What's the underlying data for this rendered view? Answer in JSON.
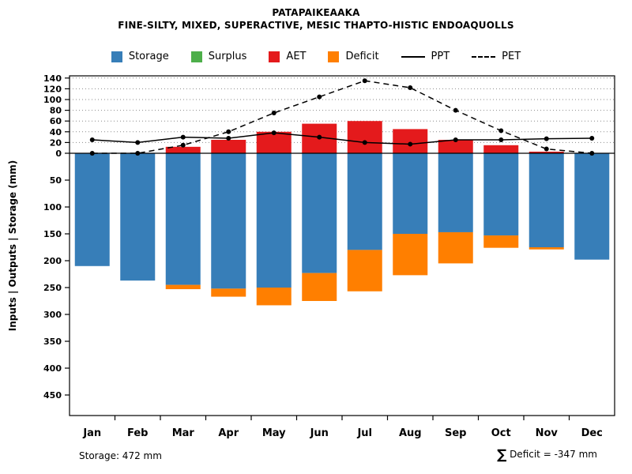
{
  "title": "PATAPAIKEAAKA",
  "subtitle": "FINE-SILTY, MIXED, SUPERACTIVE, MESIC THAPTO-HISTIC ENDOAQUOLLS",
  "footer": {
    "left": "Storage: 472 mm",
    "right_sigma": "∑",
    "right_text": " Deficit = -347 mm"
  },
  "legend": {
    "position": "top",
    "items": [
      {
        "label": "Storage",
        "swatch": "square",
        "color": "#377EB8"
      },
      {
        "label": "Surplus",
        "swatch": "square",
        "color": "#4DAF4A"
      },
      {
        "label": "AET",
        "swatch": "square",
        "color": "#E41A1C"
      },
      {
        "label": "Deficit",
        "swatch": "square",
        "color": "#FF7F00"
      },
      {
        "label": "PPT",
        "swatch": "line-solid",
        "color": "#000000"
      },
      {
        "label": "PET",
        "swatch": "line-dashed",
        "color": "#000000"
      }
    ]
  },
  "chart_data": {
    "type": "bar",
    "title": "PATAPAIKEAAKA",
    "subtitle": "FINE-SILTY, MIXED, SUPERACTIVE, MESIC THAPTO-HISTIC ENDOAQUOLLS",
    "xlabel": "",
    "ylabel": "Inputs | Outputs | Storage     (mm)",
    "categories": [
      "Jan",
      "Feb",
      "Mar",
      "Apr",
      "May",
      "Jun",
      "Jul",
      "Aug",
      "Sep",
      "Oct",
      "Nov",
      "Dec"
    ],
    "ylim": [
      -480,
      145
    ],
    "yticks_positive": [
      0,
      20,
      40,
      60,
      80,
      100,
      120,
      140
    ],
    "yticks_negative_depth_labels": [
      50,
      100,
      150,
      200,
      250,
      300,
      350,
      400,
      450
    ],
    "grid": "dotted horizontal gridlines in positive region only",
    "legend_position": "top center",
    "series": [
      {
        "name": "Storage",
        "type": "bar",
        "direction": "down",
        "color": "#377EB8",
        "values": [
          210,
          237,
          245,
          252,
          250,
          223,
          180,
          150,
          147,
          153,
          175,
          198
        ]
      },
      {
        "name": "Surplus",
        "type": "bar",
        "direction": "up",
        "color": "#4DAF4A",
        "values": [
          0,
          0,
          0,
          0,
          0,
          0,
          0,
          0,
          0,
          0,
          0,
          0
        ]
      },
      {
        "name": "AET",
        "type": "bar",
        "direction": "up",
        "color": "#E41A1C",
        "values": [
          0,
          0,
          12,
          25,
          40,
          55,
          60,
          45,
          25,
          15,
          3,
          0
        ]
      },
      {
        "name": "Deficit",
        "type": "bar",
        "direction": "down-stacked-below-storage",
        "color": "#FF7F00",
        "values": [
          0,
          0,
          8,
          15,
          33,
          52,
          77,
          77,
          58,
          23,
          4,
          0
        ]
      },
      {
        "name": "PPT",
        "type": "line",
        "style": "solid",
        "marker": "circle",
        "color": "#000000",
        "values": [
          25,
          20,
          30,
          28,
          38,
          30,
          20,
          17,
          25,
          25,
          27,
          28
        ]
      },
      {
        "name": "PET",
        "type": "line",
        "style": "dashed",
        "marker": "circle",
        "color": "#000000",
        "values": [
          0,
          0,
          15,
          40,
          75,
          105,
          135,
          122,
          80,
          42,
          8,
          0
        ]
      }
    ],
    "annotations": {
      "storage_total": "Storage: 472 mm",
      "deficit_sum": "∑ Deficit = -347 mm"
    }
  }
}
